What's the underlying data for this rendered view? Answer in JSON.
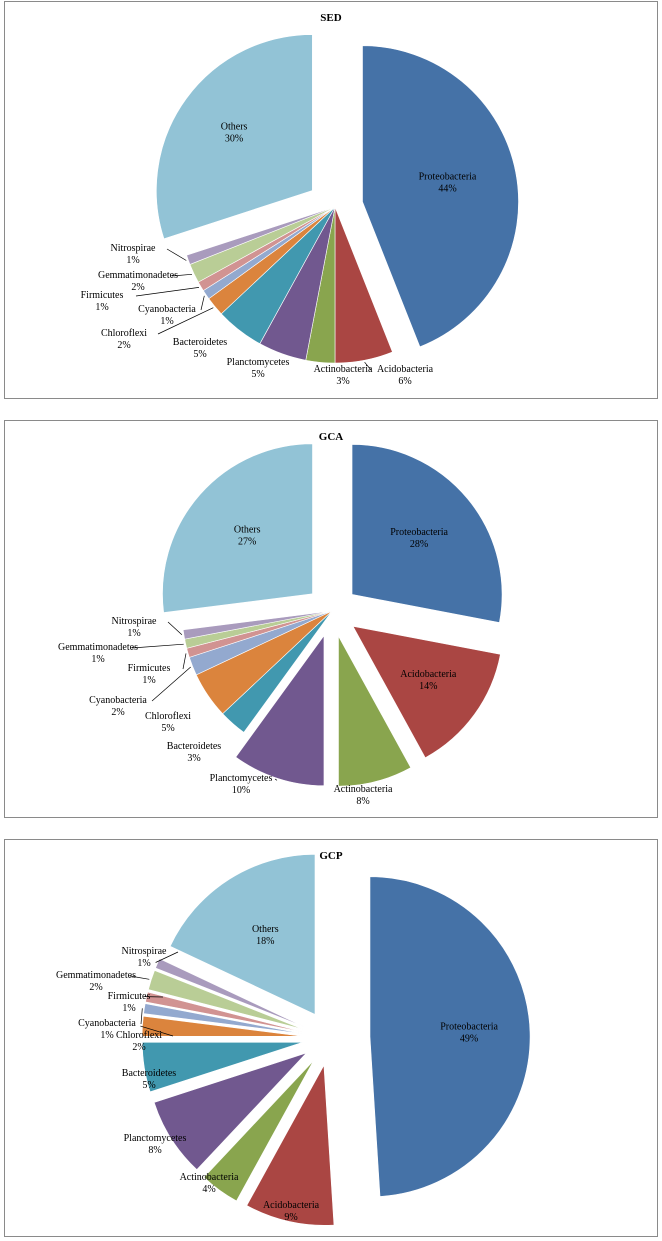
{
  "chart_data": [
    {
      "type": "pie",
      "title": "SED",
      "slices": [
        {
          "label": "Proteobacteria",
          "pct_text": "44%",
          "value": 44,
          "color": "#4572A7"
        },
        {
          "label": "Acidobacteria",
          "pct_text": "6%",
          "value": 6,
          "color": "#AA4643"
        },
        {
          "label": "Actinobacteria",
          "pct_text": "3%",
          "value": 3,
          "color": "#89A54E"
        },
        {
          "label": "Planctomycetes",
          "pct_text": "5%",
          "value": 5,
          "color": "#71588F"
        },
        {
          "label": "Bacteroidetes",
          "pct_text": "5%",
          "value": 5,
          "color": "#4198AF"
        },
        {
          "label": "Chloroflexi",
          "pct_text": "2%",
          "value": 2,
          "color": "#DB843D"
        },
        {
          "label": "Cyanobacteria",
          "pct_text": "1%",
          "value": 1,
          "color": "#93A9CF"
        },
        {
          "label": "Firmicutes",
          "pct_text": "1%",
          "value": 1,
          "color": "#D19392"
        },
        {
          "label": "Gemmatimonadetes",
          "pct_text": "2%",
          "value": 2,
          "color": "#B9CD96"
        },
        {
          "label": "Nitrospirae",
          "pct_text": "1%",
          "value": 1,
          "color": "#A99BBD"
        },
        {
          "label": "Others",
          "pct_text": "30%",
          "value": 30,
          "color": "#92C3D6"
        }
      ]
    },
    {
      "type": "pie",
      "title": "GCA",
      "slices": [
        {
          "label": "Proteobacteria",
          "pct_text": "28%",
          "value": 28,
          "color": "#4572A7"
        },
        {
          "label": "Acidobacteria",
          "pct_text": "14%",
          "value": 14,
          "color": "#AA4643"
        },
        {
          "label": "Actinobacteria",
          "pct_text": "8%",
          "value": 8,
          "color": "#89A54E"
        },
        {
          "label": "Planctomycetes",
          "pct_text": "10%",
          "value": 10,
          "color": "#71588F"
        },
        {
          "label": "Bacteroidetes",
          "pct_text": "3%",
          "value": 3,
          "color": "#4198AF"
        },
        {
          "label": "Chloroflexi",
          "pct_text": "5%",
          "value": 5,
          "color": "#DB843D"
        },
        {
          "label": "Cyanobacteria",
          "pct_text": "2%",
          "value": 2,
          "color": "#93A9CF"
        },
        {
          "label": "Firmicutes",
          "pct_text": "1%",
          "value": 1,
          "color": "#D19392"
        },
        {
          "label": "Gemmatimonadetes",
          "pct_text": "1%",
          "value": 1,
          "color": "#B9CD96"
        },
        {
          "label": "Nitrospirae",
          "pct_text": "1%",
          "value": 1,
          "color": "#A99BBD"
        },
        {
          "label": "Others",
          "pct_text": "27%",
          "value": 27,
          "color": "#92C3D6"
        }
      ]
    },
    {
      "type": "pie",
      "title": "GCP",
      "slices": [
        {
          "label": "Proteobacteria",
          "pct_text": "49%",
          "value": 49,
          "color": "#4572A7"
        },
        {
          "label": "Acidobacteria",
          "pct_text": "9%",
          "value": 9,
          "color": "#AA4643"
        },
        {
          "label": "Actinobacteria",
          "pct_text": "4%",
          "value": 4,
          "color": "#89A54E"
        },
        {
          "label": "Planctomycetes",
          "pct_text": "8%",
          "value": 8,
          "color": "#71588F"
        },
        {
          "label": "Bacteroidetes",
          "pct_text": "5%",
          "value": 5,
          "color": "#4198AF"
        },
        {
          "label": "Chloroflexi",
          "pct_text": "2%",
          "value": 2,
          "color": "#DB843D"
        },
        {
          "label": "Cyanobacteria",
          "pct_text": "1%",
          "value": 1,
          "color": "#93A9CF"
        },
        {
          "label": "Firmicutes",
          "pct_text": "1%",
          "value": 1,
          "color": "#D19392"
        },
        {
          "label": "Gemmatimonadetes",
          "pct_text": "2%",
          "value": 2,
          "color": "#B9CD96"
        },
        {
          "label": "Nitrospirae",
          "pct_text": "1%",
          "value": 1,
          "color": "#A99BBD"
        },
        {
          "label": "Others",
          "pct_text": "18%",
          "value": 18,
          "color": "#92C3D6"
        }
      ]
    }
  ]
}
